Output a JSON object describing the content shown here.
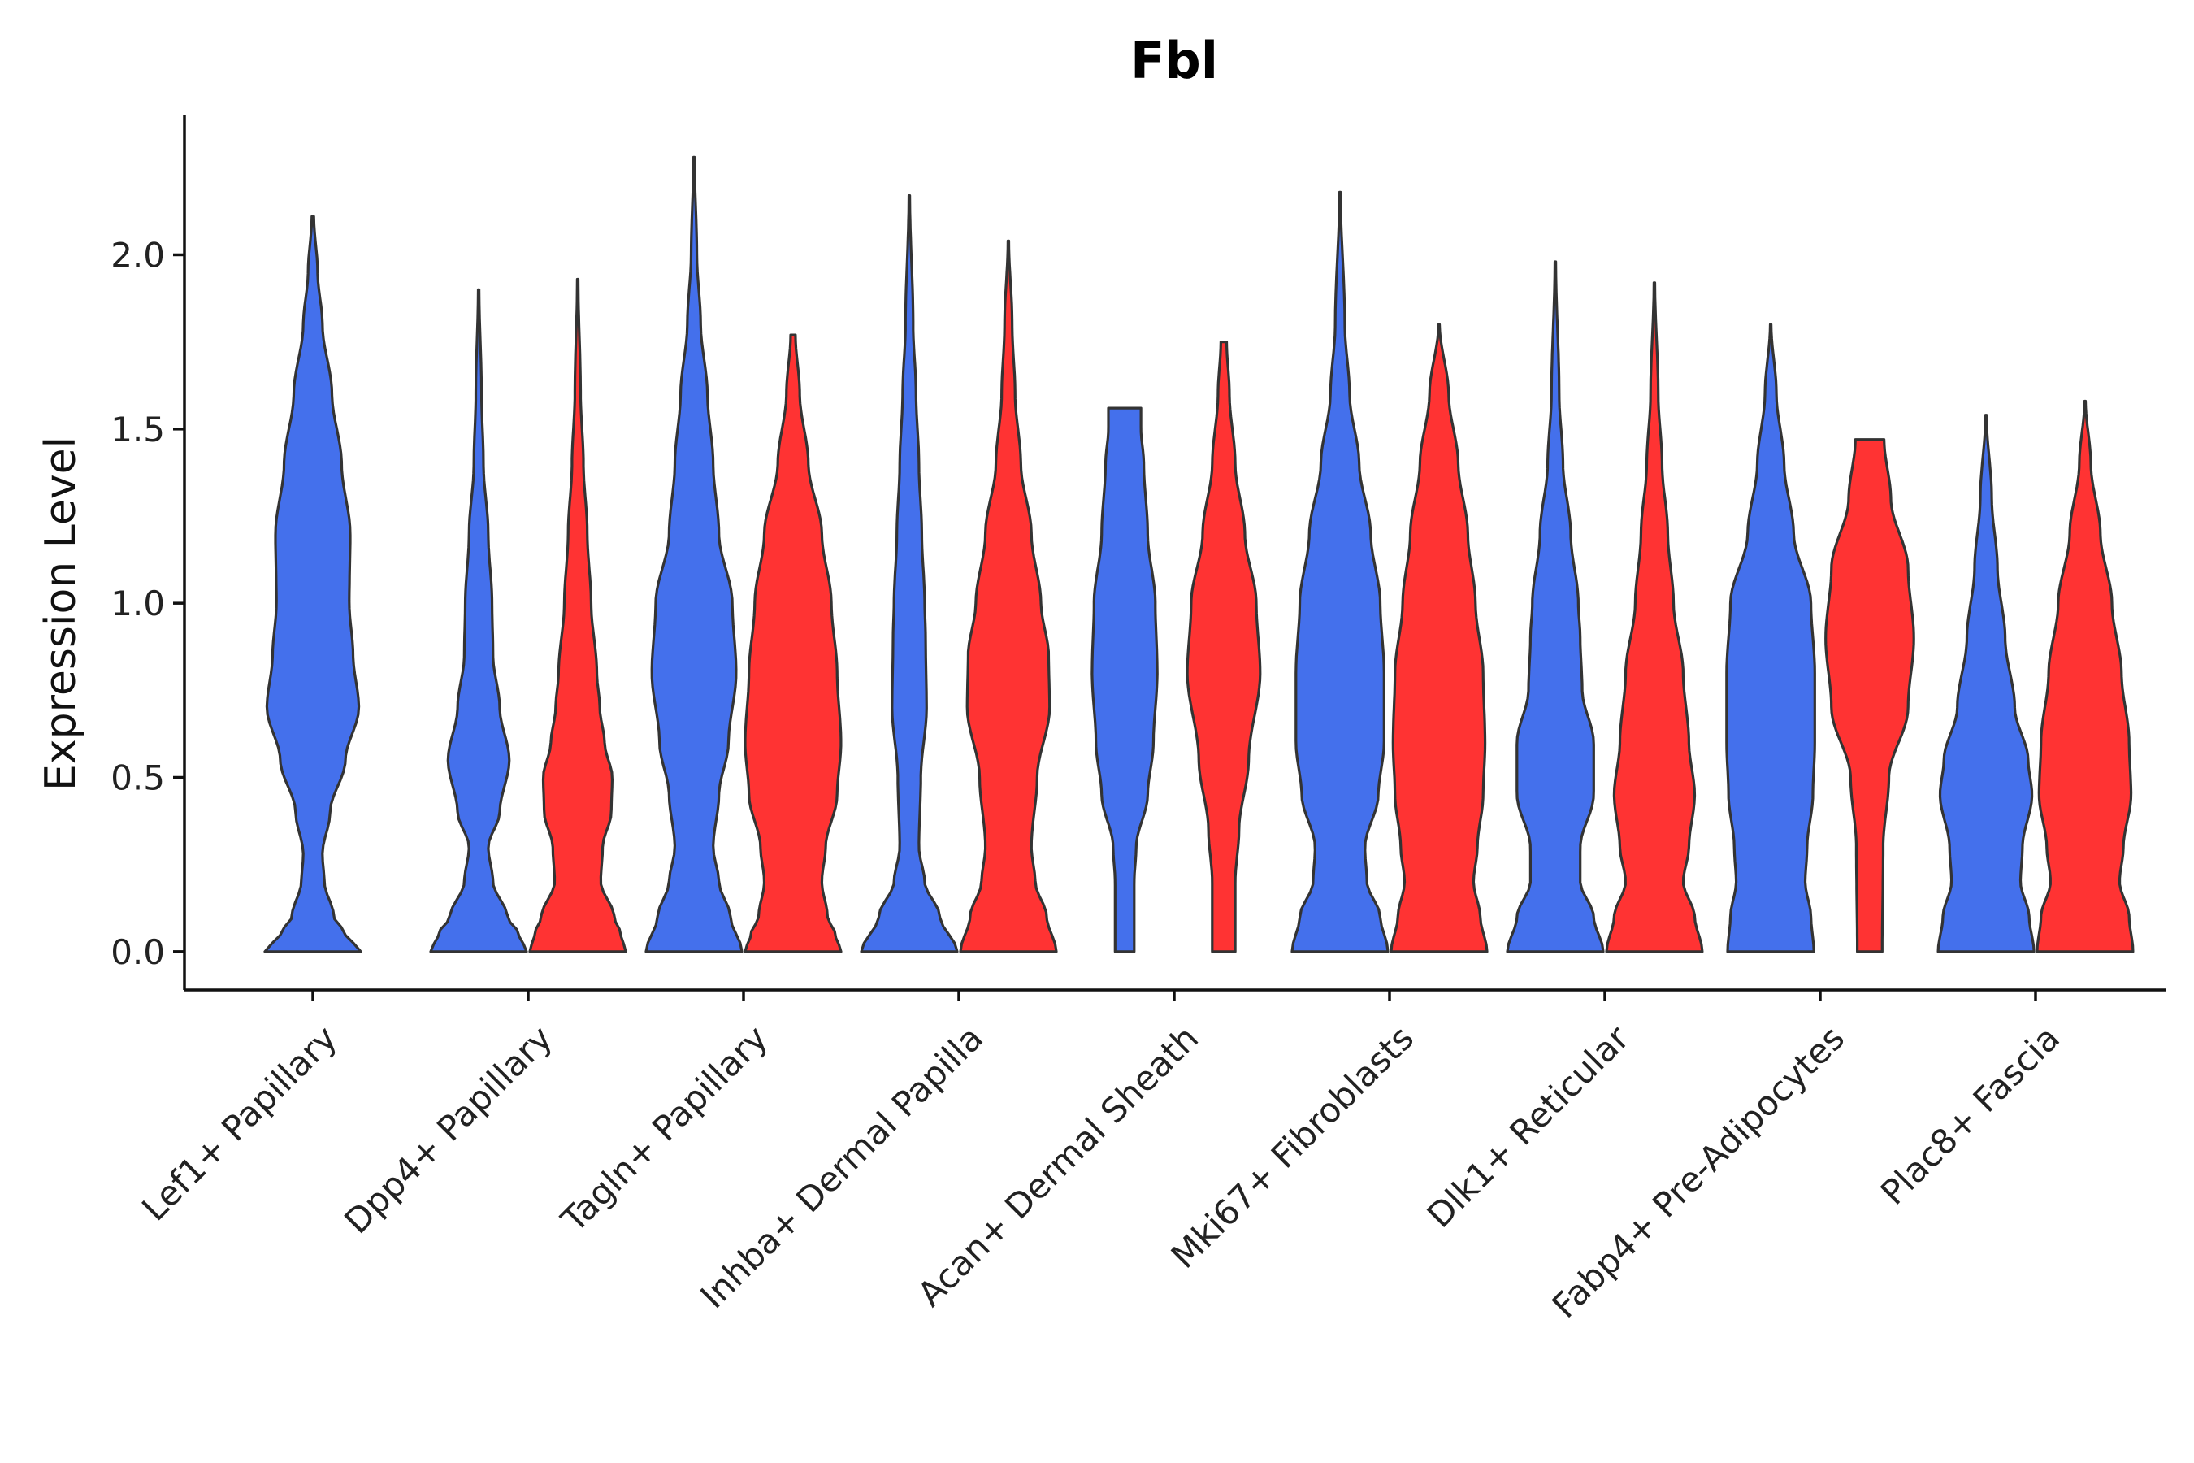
{
  "chart_data": {
    "type": "violin",
    "title": "Fbl",
    "xlabel": "",
    "ylabel": "Expression Level",
    "ylim": [
      -0.11,
      2.4
    ],
    "yticks": [
      "0.0",
      "0.5",
      "1.0",
      "1.5",
      "2.0"
    ],
    "ytick_values": [
      0,
      0.5,
      1.0,
      1.5,
      2.0
    ],
    "categories": [
      "Lef1+ Papillary",
      "Dpp4+ Papillary",
      "Tagln+ Papillary",
      "Inhba+ Dermal Papilla",
      "Acan+ Dermal Sheath",
      "Mki67+ Fibroblasts",
      "Dlk1+ Reticular",
      "Fabp4+ Pre-Adipocytes",
      "Plac8+ Fascia"
    ],
    "series_colors": {
      "blue": "#4470EC",
      "red": "#FF3333"
    },
    "violins": [
      {
        "category": "Lef1+ Papillary",
        "color": "blue",
        "offset": 0,
        "max": 2.11,
        "profile": [
          [
            0,
            0.5
          ],
          [
            0.05,
            0.34
          ],
          [
            0.1,
            0.22
          ],
          [
            0.2,
            0.12
          ],
          [
            0.28,
            0.1
          ],
          [
            0.4,
            0.18
          ],
          [
            0.55,
            0.34
          ],
          [
            0.7,
            0.48
          ],
          [
            0.85,
            0.42
          ],
          [
            1.0,
            0.38
          ],
          [
            1.2,
            0.39
          ],
          [
            1.4,
            0.3
          ],
          [
            1.6,
            0.2
          ],
          [
            1.8,
            0.1
          ],
          [
            1.95,
            0.05
          ],
          [
            2.11,
            0.01
          ]
        ]
      },
      {
        "category": "Dpp4+ Papillary",
        "color": "blue",
        "offset": -0.23,
        "max": 1.9,
        "profile": [
          [
            0,
            0.5
          ],
          [
            0.05,
            0.42
          ],
          [
            0.1,
            0.3
          ],
          [
            0.2,
            0.15
          ],
          [
            0.3,
            0.1
          ],
          [
            0.4,
            0.22
          ],
          [
            0.55,
            0.32
          ],
          [
            0.7,
            0.22
          ],
          [
            0.85,
            0.15
          ],
          [
            1.0,
            0.14
          ],
          [
            1.2,
            0.1
          ],
          [
            1.4,
            0.05
          ],
          [
            1.6,
            0.03
          ],
          [
            1.9,
            0.005
          ]
        ]
      },
      {
        "category": "Dpp4+ Papillary",
        "color": "red",
        "offset": 0.23,
        "max": 1.93,
        "profile": [
          [
            0,
            0.5
          ],
          [
            0.05,
            0.45
          ],
          [
            0.1,
            0.38
          ],
          [
            0.2,
            0.24
          ],
          [
            0.3,
            0.26
          ],
          [
            0.4,
            0.35
          ],
          [
            0.5,
            0.36
          ],
          [
            0.6,
            0.28
          ],
          [
            0.7,
            0.23
          ],
          [
            0.8,
            0.2
          ],
          [
            1.0,
            0.14
          ],
          [
            1.2,
            0.1
          ],
          [
            1.4,
            0.06
          ],
          [
            1.6,
            0.03
          ],
          [
            1.93,
            0.005
          ]
        ]
      },
      {
        "category": "Tagln+ Papillary",
        "color": "blue",
        "offset": -0.23,
        "max": 2.28,
        "profile": [
          [
            0,
            0.5
          ],
          [
            0.1,
            0.38
          ],
          [
            0.2,
            0.26
          ],
          [
            0.3,
            0.2
          ],
          [
            0.45,
            0.26
          ],
          [
            0.6,
            0.36
          ],
          [
            0.8,
            0.44
          ],
          [
            1.0,
            0.4
          ],
          [
            1.2,
            0.26
          ],
          [
            1.4,
            0.2
          ],
          [
            1.6,
            0.14
          ],
          [
            1.8,
            0.07
          ],
          [
            2.0,
            0.03
          ],
          [
            2.28,
            0.005
          ]
        ]
      },
      {
        "category": "Tagln+ Papillary",
        "color": "red",
        "offset": 0.23,
        "max": 1.77,
        "profile": [
          [
            0,
            0.5
          ],
          [
            0.05,
            0.44
          ],
          [
            0.1,
            0.36
          ],
          [
            0.2,
            0.3
          ],
          [
            0.3,
            0.34
          ],
          [
            0.45,
            0.46
          ],
          [
            0.6,
            0.5
          ],
          [
            0.8,
            0.46
          ],
          [
            1.0,
            0.4
          ],
          [
            1.2,
            0.3
          ],
          [
            1.4,
            0.16
          ],
          [
            1.6,
            0.07
          ],
          [
            1.77,
            0.025
          ]
        ]
      },
      {
        "category": "Inhba+ Dermal Papilla",
        "color": "blue",
        "offset": -0.23,
        "max": 2.17,
        "profile": [
          [
            0,
            0.5
          ],
          [
            0.1,
            0.32
          ],
          [
            0.2,
            0.16
          ],
          [
            0.3,
            0.1
          ],
          [
            0.5,
            0.12
          ],
          [
            0.7,
            0.18
          ],
          [
            0.9,
            0.17
          ],
          [
            1.0,
            0.16
          ],
          [
            1.2,
            0.13
          ],
          [
            1.4,
            0.1
          ],
          [
            1.6,
            0.07
          ],
          [
            1.8,
            0.04
          ],
          [
            2.17,
            0.005
          ]
        ]
      },
      {
        "category": "Inhba+ Dermal Papilla",
        "color": "red",
        "offset": 0.23,
        "max": 2.04,
        "profile": [
          [
            0,
            0.5
          ],
          [
            0.1,
            0.4
          ],
          [
            0.2,
            0.28
          ],
          [
            0.3,
            0.24
          ],
          [
            0.5,
            0.3
          ],
          [
            0.7,
            0.43
          ],
          [
            0.85,
            0.42
          ],
          [
            1.0,
            0.34
          ],
          [
            1.2,
            0.24
          ],
          [
            1.4,
            0.13
          ],
          [
            1.6,
            0.07
          ],
          [
            1.8,
            0.04
          ],
          [
            2.04,
            0.005
          ]
        ]
      },
      {
        "category": "Acan+ Dermal Sheath",
        "color": "blue",
        "offset": -0.23,
        "max": 1.56,
        "profile": [
          [
            0,
            0.1
          ],
          [
            0.2,
            0.1
          ],
          [
            0.3,
            0.12
          ],
          [
            0.45,
            0.24
          ],
          [
            0.6,
            0.3
          ],
          [
            0.8,
            0.34
          ],
          [
            1.0,
            0.32
          ],
          [
            1.2,
            0.24
          ],
          [
            1.4,
            0.2
          ],
          [
            1.5,
            0.17
          ],
          [
            1.56,
            0.17
          ]
        ]
      },
      {
        "category": "Acan+ Dermal Sheath",
        "color": "red",
        "offset": 0.23,
        "max": 1.75,
        "profile": [
          [
            0,
            0.12
          ],
          [
            0.2,
            0.12
          ],
          [
            0.35,
            0.16
          ],
          [
            0.55,
            0.26
          ],
          [
            0.8,
            0.38
          ],
          [
            1.0,
            0.34
          ],
          [
            1.2,
            0.22
          ],
          [
            1.4,
            0.12
          ],
          [
            1.6,
            0.06
          ],
          [
            1.75,
            0.03
          ]
        ]
      },
      {
        "category": "Mki67+ Fibroblasts",
        "color": "blue",
        "offset": -0.23,
        "max": 2.18,
        "profile": [
          [
            0,
            0.5
          ],
          [
            0.1,
            0.42
          ],
          [
            0.2,
            0.28
          ],
          [
            0.3,
            0.26
          ],
          [
            0.45,
            0.4
          ],
          [
            0.6,
            0.46
          ],
          [
            0.8,
            0.46
          ],
          [
            1.0,
            0.42
          ],
          [
            1.2,
            0.32
          ],
          [
            1.4,
            0.2
          ],
          [
            1.6,
            0.1
          ],
          [
            1.8,
            0.05
          ],
          [
            2.18,
            0.005
          ]
        ]
      },
      {
        "category": "Mki67+ Fibroblasts",
        "color": "red",
        "offset": 0.23,
        "max": 1.8,
        "profile": [
          [
            0,
            0.5
          ],
          [
            0.1,
            0.43
          ],
          [
            0.2,
            0.36
          ],
          [
            0.3,
            0.4
          ],
          [
            0.45,
            0.46
          ],
          [
            0.6,
            0.48
          ],
          [
            0.8,
            0.46
          ],
          [
            1.0,
            0.38
          ],
          [
            1.2,
            0.3
          ],
          [
            1.4,
            0.2
          ],
          [
            1.6,
            0.1
          ],
          [
            1.8,
            0.005
          ]
        ]
      },
      {
        "category": "Dlk1+ Reticular",
        "color": "blue",
        "offset": -0.23,
        "max": 1.98,
        "profile": [
          [
            0,
            0.5
          ],
          [
            0.1,
            0.4
          ],
          [
            0.2,
            0.26
          ],
          [
            0.3,
            0.26
          ],
          [
            0.45,
            0.4
          ],
          [
            0.6,
            0.4
          ],
          [
            0.75,
            0.28
          ],
          [
            0.9,
            0.26
          ],
          [
            1.0,
            0.24
          ],
          [
            1.2,
            0.16
          ],
          [
            1.4,
            0.08
          ],
          [
            1.6,
            0.04
          ],
          [
            1.98,
            0.005
          ]
        ]
      },
      {
        "category": "Dlk1+ Reticular",
        "color": "red",
        "offset": 0.23,
        "max": 1.92,
        "profile": [
          [
            0,
            0.5
          ],
          [
            0.1,
            0.42
          ],
          [
            0.2,
            0.3
          ],
          [
            0.3,
            0.36
          ],
          [
            0.45,
            0.42
          ],
          [
            0.6,
            0.36
          ],
          [
            0.8,
            0.3
          ],
          [
            1.0,
            0.2
          ],
          [
            1.2,
            0.14
          ],
          [
            1.4,
            0.08
          ],
          [
            1.6,
            0.04
          ],
          [
            1.92,
            0.005
          ]
        ]
      },
      {
        "category": "Fabp4+ Pre-Adipocytes",
        "color": "blue",
        "offset": -0.23,
        "max": 1.8,
        "profile": [
          [
            0,
            0.45
          ],
          [
            0.1,
            0.42
          ],
          [
            0.2,
            0.36
          ],
          [
            0.3,
            0.38
          ],
          [
            0.45,
            0.44
          ],
          [
            0.6,
            0.46
          ],
          [
            0.8,
            0.46
          ],
          [
            1.0,
            0.42
          ],
          [
            1.2,
            0.24
          ],
          [
            1.4,
            0.14
          ],
          [
            1.6,
            0.06
          ],
          [
            1.8,
            0.005
          ]
        ]
      },
      {
        "category": "Fabp4+ Pre-Adipocytes",
        "color": "red",
        "offset": 0.23,
        "max": 1.47,
        "profile": [
          [
            0,
            0.13
          ],
          [
            0.3,
            0.14
          ],
          [
            0.5,
            0.2
          ],
          [
            0.7,
            0.4
          ],
          [
            0.9,
            0.46
          ],
          [
            1.1,
            0.4
          ],
          [
            1.3,
            0.22
          ],
          [
            1.47,
            0.15
          ]
        ]
      },
      {
        "category": "Plac8+ Fascia",
        "color": "blue",
        "offset": -0.23,
        "max": 1.54,
        "profile": [
          [
            0,
            0.5
          ],
          [
            0.1,
            0.45
          ],
          [
            0.2,
            0.36
          ],
          [
            0.3,
            0.38
          ],
          [
            0.45,
            0.48
          ],
          [
            0.55,
            0.44
          ],
          [
            0.7,
            0.3
          ],
          [
            0.9,
            0.2
          ],
          [
            1.1,
            0.12
          ],
          [
            1.3,
            0.06
          ],
          [
            1.54,
            0.005
          ]
        ]
      },
      {
        "category": "Plac8+ Fascia",
        "color": "red",
        "offset": 0.23,
        "max": 1.58,
        "profile": [
          [
            0,
            0.5
          ],
          [
            0.1,
            0.46
          ],
          [
            0.2,
            0.36
          ],
          [
            0.3,
            0.4
          ],
          [
            0.45,
            0.48
          ],
          [
            0.6,
            0.46
          ],
          [
            0.8,
            0.38
          ],
          [
            1.0,
            0.28
          ],
          [
            1.2,
            0.16
          ],
          [
            1.4,
            0.06
          ],
          [
            1.58,
            0.005
          ]
        ]
      }
    ]
  }
}
